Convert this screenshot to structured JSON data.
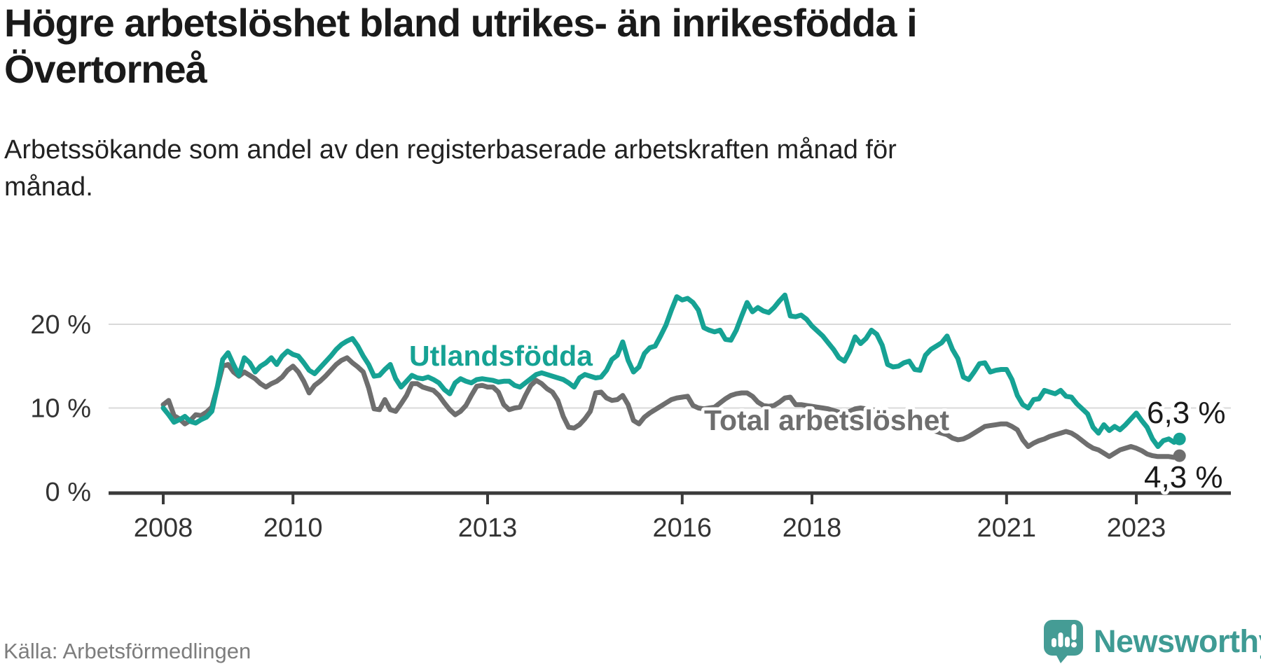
{
  "header": {
    "title": "Högre arbetslöshet bland utrikes- än inrikesfödda i\nÖvertorneå",
    "subtitle": "Arbetssökande som andel av den registerbaserade arbetskraften månad för\nmånad."
  },
  "footer": {
    "source": "Källa: Arbetsförmedlingen",
    "brand": "Newsworthy"
  },
  "chart_data": {
    "type": "line",
    "title": "Högre arbetslöshet bland utrikes- än inrikesfödda i Övertorneå",
    "subtitle": "Arbetssökande som andel av den registerbaserade arbetskraften månad för månad.",
    "unit": "%",
    "frequency": "monthly",
    "x_start": {
      "year": 2008,
      "month": 1
    },
    "x_end": {
      "year": 2023,
      "month": 9
    },
    "x_ticks": [
      2008,
      2010,
      2013,
      2016,
      2018,
      2021,
      2023
    ],
    "y_ticks": [
      {
        "value": 0,
        "label": "0 %"
      },
      {
        "value": 10,
        "label": "10 %"
      },
      {
        "value": 20,
        "label": "20 %"
      }
    ],
    "ylim": [
      0,
      25
    ],
    "grid": "horizontal",
    "legend_position": "inline-labels",
    "colors": {
      "foreign_born": "#16a294",
      "total": "#6e6e6e"
    },
    "series": [
      {
        "name": "Utlandsfödda",
        "color": "#16a294",
        "end_label": "6,3 %",
        "end_value": 6.3,
        "values": [
          10.0,
          9.2,
          8.3,
          8.6,
          9.0,
          8.4,
          8.2,
          8.6,
          8.9,
          9.6,
          12.5,
          15.8,
          16.6,
          15.2,
          13.9,
          16.0,
          15.4,
          14.3,
          15.0,
          15.4,
          16.0,
          15.2,
          16.2,
          16.8,
          16.4,
          16.2,
          15.4,
          14.5,
          14.1,
          14.8,
          15.5,
          16.2,
          17.0,
          17.6,
          18.0,
          18.3,
          17.4,
          16.2,
          15.2,
          13.8,
          13.9,
          14.6,
          15.2,
          13.5,
          12.5,
          13.2,
          13.9,
          13.6,
          13.5,
          13.7,
          13.4,
          13.0,
          12.2,
          11.7,
          13.0,
          13.5,
          13.2,
          13.0,
          13.4,
          13.5,
          13.4,
          13.3,
          13.1,
          13.2,
          13.2,
          12.7,
          12.5,
          13.0,
          13.5,
          14.0,
          14.2,
          14.0,
          13.8,
          13.6,
          13.4,
          13.0,
          12.5,
          13.6,
          14.0,
          13.8,
          13.6,
          13.7,
          14.5,
          15.8,
          16.3,
          17.9,
          15.7,
          14.3,
          14.9,
          16.5,
          17.2,
          17.4,
          18.6,
          19.9,
          21.7,
          23.3,
          22.9,
          23.1,
          22.6,
          21.7,
          19.6,
          19.3,
          19.1,
          19.3,
          18.2,
          18.1,
          19.3,
          21.0,
          22.6,
          21.5,
          22.0,
          21.6,
          21.4,
          22.0,
          22.8,
          23.5,
          21.0,
          20.9,
          21.1,
          20.6,
          19.8,
          19.2,
          18.6,
          17.8,
          17.0,
          16.0,
          15.6,
          16.8,
          18.5,
          17.7,
          18.3,
          19.3,
          18.8,
          17.5,
          15.2,
          14.9,
          15.0,
          15.4,
          15.6,
          14.6,
          14.5,
          16.3,
          17.0,
          17.4,
          17.8,
          18.6,
          17.0,
          15.9,
          13.7,
          13.4,
          14.3,
          15.3,
          15.4,
          14.3,
          14.5,
          14.6,
          14.6,
          13.4,
          11.5,
          10.4,
          10.0,
          11.0,
          11.1,
          12.1,
          11.9,
          11.7,
          12.1,
          11.4,
          11.3,
          10.5,
          9.9,
          9.3,
          7.7,
          7.0,
          8.0,
          7.3,
          7.8,
          7.4,
          8.0,
          8.7,
          9.4,
          8.5,
          7.7,
          6.3,
          5.4,
          6.1,
          6.3,
          5.9,
          6.3
        ]
      },
      {
        "name": "Total arbetslöshet",
        "color": "#6e6e6e",
        "end_label": "4,3 %",
        "end_value": 4.3,
        "values": [
          10.4,
          10.9,
          9.1,
          8.7,
          8.1,
          8.5,
          9.2,
          9.1,
          9.5,
          10.1,
          12.5,
          15.0,
          15.2,
          14.3,
          13.8,
          14.3,
          13.9,
          13.5,
          12.9,
          12.5,
          12.9,
          13.2,
          13.7,
          14.5,
          15.0,
          14.3,
          13.2,
          11.8,
          12.7,
          13.2,
          13.8,
          14.5,
          15.2,
          15.7,
          16.0,
          15.4,
          14.9,
          14.3,
          12.4,
          9.9,
          9.8,
          11.0,
          9.8,
          9.6,
          10.5,
          11.5,
          12.9,
          12.9,
          12.5,
          12.3,
          12.1,
          11.5,
          10.6,
          9.8,
          9.2,
          9.6,
          10.3,
          11.5,
          12.6,
          12.7,
          12.5,
          12.5,
          11.9,
          10.4,
          9.8,
          10.0,
          10.1,
          11.5,
          12.7,
          13.3,
          12.9,
          12.3,
          11.9,
          10.9,
          9.0,
          7.7,
          7.6,
          8.0,
          8.7,
          9.6,
          11.8,
          11.9,
          11.2,
          10.9,
          11.0,
          11.5,
          10.4,
          8.5,
          8.1,
          8.9,
          9.4,
          9.8,
          10.2,
          10.6,
          11.0,
          11.2,
          11.3,
          11.4,
          10.3,
          10.0,
          9.9,
          10.0,
          10.1,
          10.6,
          11.1,
          11.5,
          11.7,
          11.8,
          11.8,
          11.4,
          10.7,
          10.3,
          10.2,
          10.3,
          10.7,
          11.2,
          11.3,
          10.4,
          10.4,
          10.3,
          10.2,
          10.1,
          10.0,
          9.9,
          9.7,
          9.5,
          9.4,
          9.6,
          9.9,
          10.0,
          9.9,
          9.8,
          9.7,
          9.4,
          9.0,
          8.7,
          8.5,
          8.3,
          8.1,
          7.9,
          7.7,
          7.6,
          7.4,
          7.2,
          7.0,
          6.8,
          6.4,
          6.2,
          6.3,
          6.6,
          7.0,
          7.4,
          7.8,
          7.9,
          8.0,
          8.1,
          8.1,
          7.8,
          7.4,
          6.2,
          5.4,
          5.8,
          6.1,
          6.3,
          6.6,
          6.8,
          7.0,
          7.2,
          7.0,
          6.6,
          6.1,
          5.6,
          5.2,
          5.0,
          4.6,
          4.2,
          4.6,
          5.0,
          5.2,
          5.4,
          5.2,
          4.9,
          4.5,
          4.3,
          4.2,
          4.2,
          4.2,
          4.1,
          4.3
        ]
      }
    ]
  }
}
